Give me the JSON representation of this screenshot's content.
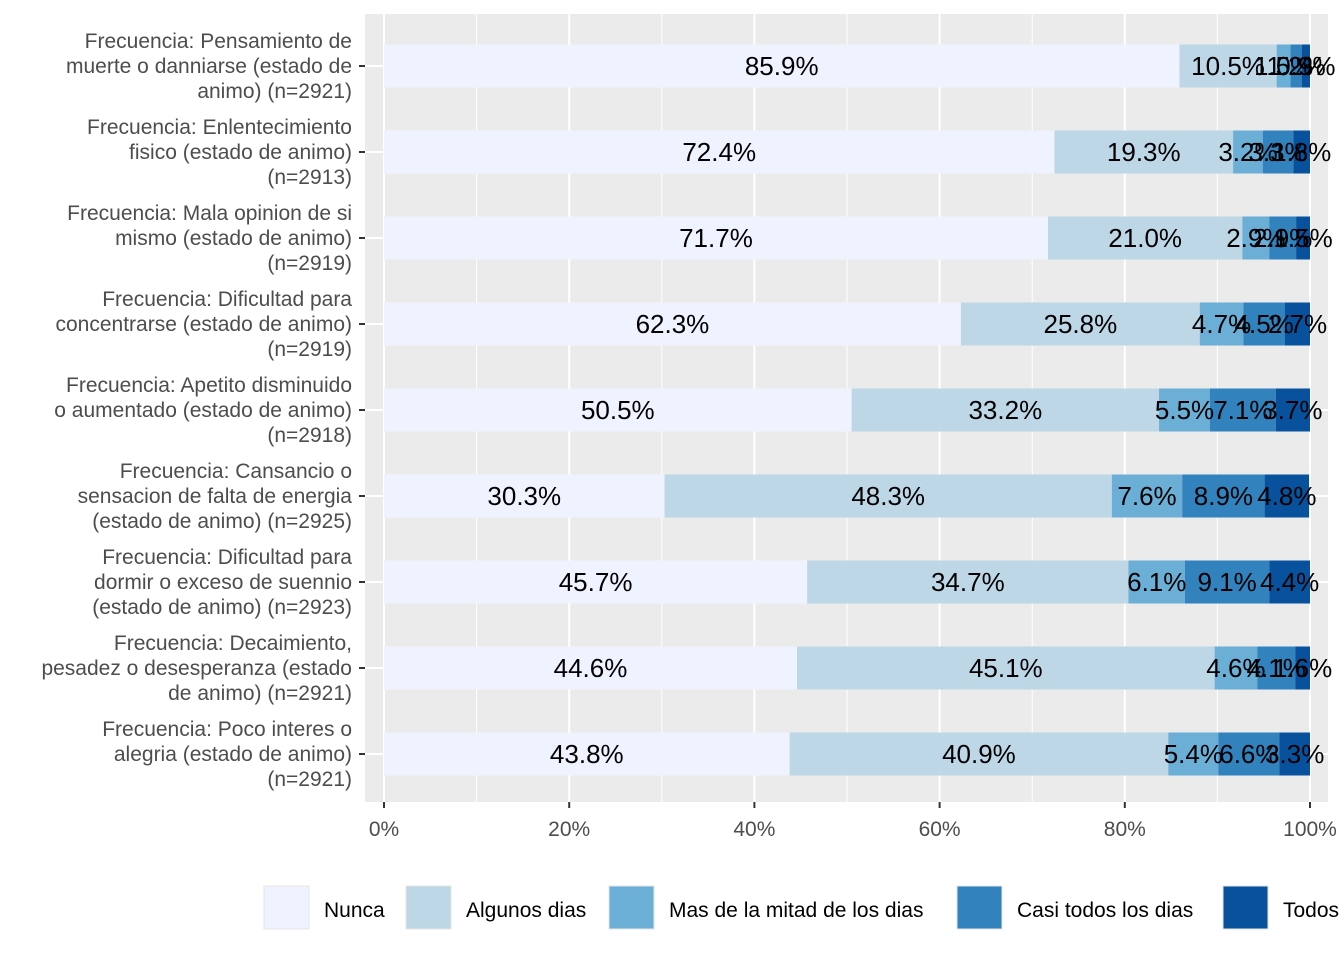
{
  "chart_data": {
    "type": "bar",
    "orientation": "horizontal",
    "stacked": true,
    "percent_scale": true,
    "grid": true,
    "legend_position": "bottom",
    "categories": [
      "Frecuencia: Pensamiento de|muerte o  danniarse (estado de|animo) (n=2921)",
      "Frecuencia: Enlentecimiento|fisico (estado de animo)|(n=2913)",
      "Frecuencia: Mala opinion de si|mismo (estado de animo)|(n=2919)",
      "Frecuencia: Dificultad para|concentrarse (estado de animo)|(n=2919)",
      "Frecuencia: Apetito disminuido|o aumentado (estado de animo)|(n=2918)",
      "Frecuencia: Cansancio o|sensacion de falta de energia|(estado de animo) (n=2925)",
      "Frecuencia: Dificultad para|dormir o exceso de suennio|(estado de animo) (n=2923)",
      "Frecuencia: Decaimiento,|pesadez o desesperanza (estado|de animo) (n=2921)",
      "Frecuencia: Poco interes o|alegria (estado de animo)|(n=2921)"
    ],
    "series": [
      {
        "name": "Nunca",
        "color": "#eff3ff",
        "values": [
          85.9,
          72.4,
          71.7,
          62.3,
          50.5,
          30.3,
          45.7,
          44.6,
          43.8
        ],
        "labels": [
          "85.9%",
          "72.4%",
          "71.7%",
          "62.3%",
          "50.5%",
          "30.3%",
          "45.7%",
          "44.6%",
          "43.8%"
        ]
      },
      {
        "name": "Algunos dias",
        "color": "#bdd7e7",
        "values": [
          10.5,
          19.3,
          21.0,
          25.8,
          33.2,
          48.3,
          34.7,
          45.1,
          40.9
        ],
        "labels": [
          "10.5%",
          "19.3%",
          "21.0%",
          "25.8%",
          "33.2%",
          "48.3%",
          "34.7%",
          "45.1%",
          "40.9%"
        ]
      },
      {
        "name": "Mas de la mitad de los dias",
        "color": "#6baed6",
        "values": [
          1.5,
          3.2,
          2.9,
          4.7,
          5.5,
          7.6,
          6.1,
          4.6,
          5.4
        ],
        "labels": [
          "1.5%",
          "3.2%",
          "2.9%",
          "4.7%",
          "5.5%",
          "7.6%",
          "6.1%",
          "4.6%",
          "5.4%"
        ]
      },
      {
        "name": "Casi todos los dias",
        "color": "#3182bd",
        "values": [
          1.2,
          3.3,
          2.9,
          4.5,
          7.1,
          8.9,
          9.1,
          4.1,
          6.6
        ],
        "labels": [
          "1.2%",
          "3.3%",
          "2.9%",
          "4.5%",
          "7.1%",
          "8.9%",
          "9.1%",
          "4.1%",
          "6.6%"
        ]
      },
      {
        "name": "Todos los dias",
        "color": "#08519c",
        "values": [
          0.9,
          1.8,
          1.5,
          2.7,
          3.7,
          4.8,
          4.4,
          1.6,
          3.3
        ],
        "labels": [
          "0.9%",
          "1.8%",
          "1.5%",
          "2.7%",
          "3.7%",
          "4.8%",
          "4.4%",
          "1.6%",
          "3.3%"
        ]
      }
    ],
    "xlim": [
      0,
      100
    ],
    "xticks": [
      "0%",
      "20%",
      "40%",
      "60%",
      "80%",
      "100%"
    ],
    "xtick_values": [
      0,
      20,
      40,
      60,
      80,
      100
    ],
    "panel_color": "#ebebeb",
    "grid_color": "#ffffff"
  }
}
